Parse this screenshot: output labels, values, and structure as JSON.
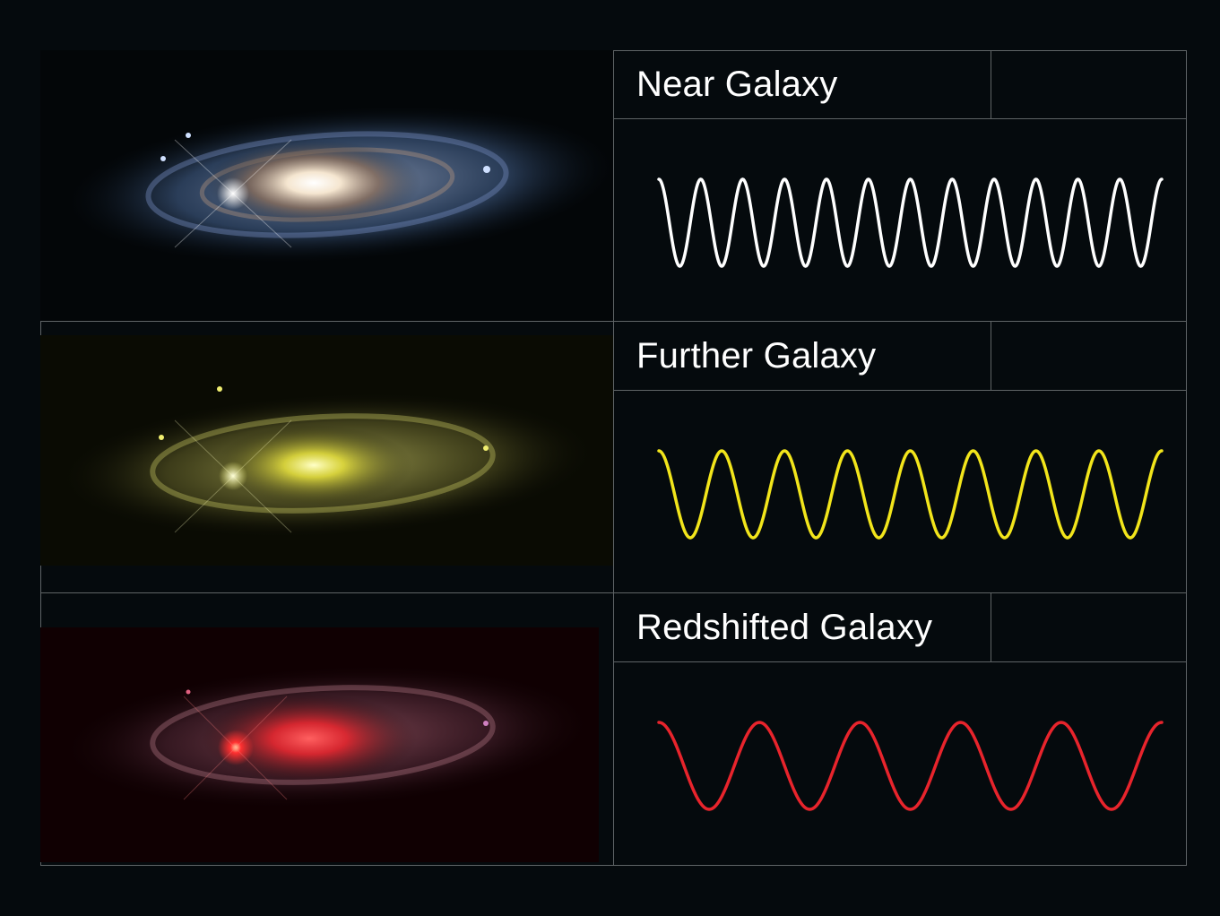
{
  "panels": [
    {
      "title": "Near Galaxy",
      "wave_color": "#ffffff",
      "cycles": 12,
      "tint": "natural"
    },
    {
      "title": "Further Galaxy",
      "wave_color": "#f2e51b",
      "cycles": 8,
      "tint": "#e8e23a"
    },
    {
      "title": "Redshifted Galaxy",
      "wave_color": "#e8242c",
      "cycles": 5,
      "tint": "#e8242c"
    }
  ]
}
